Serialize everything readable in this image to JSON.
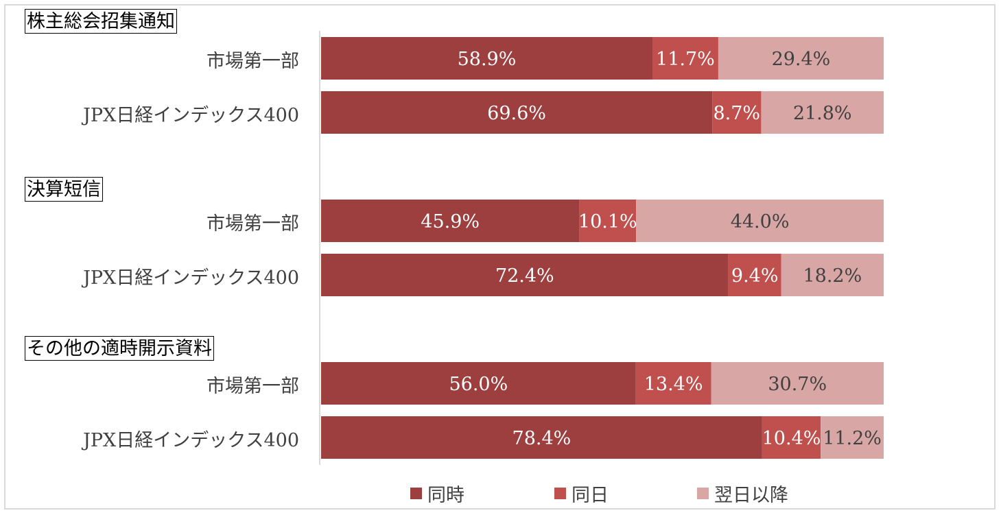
{
  "chart_data": {
    "type": "bar",
    "orientation": "horizontal",
    "stacked": true,
    "xlim": [
      0,
      100
    ],
    "colors": [
      "#9e3f3f",
      "#c0504d",
      "#d9a6a6"
    ],
    "series_names": [
      "同時",
      "同日",
      "翌日以降"
    ],
    "groups": [
      {
        "title": "株主総会招集通知",
        "rows": [
          {
            "label": "市場第一部",
            "values": [
              58.9,
              11.7,
              29.4
            ],
            "value_labels": [
              "58.9%",
              "11.7%",
              "29.4%"
            ]
          },
          {
            "label": "JPX日経インデックス400",
            "values": [
              69.6,
              8.7,
              21.8
            ],
            "value_labels": [
              "69.6%",
              "8.7%",
              "21.8%"
            ]
          }
        ]
      },
      {
        "title": "決算短信",
        "rows": [
          {
            "label": "市場第一部",
            "values": [
              45.9,
              10.1,
              44.0
            ],
            "value_labels": [
              "45.9%",
              "10.1%",
              "44.0%"
            ]
          },
          {
            "label": "JPX日経インデックス400",
            "values": [
              72.4,
              9.4,
              18.2
            ],
            "value_labels": [
              "72.4%",
              "9.4%",
              "18.2%"
            ]
          }
        ]
      },
      {
        "title": "その他の適時開示資料",
        "rows": [
          {
            "label": "市場第一部",
            "values": [
              56.0,
              13.4,
              30.7
            ],
            "value_labels": [
              "56.0%",
              "13.4%",
              "30.7%"
            ]
          },
          {
            "label": "JPX日経インデックス400",
            "values": [
              78.4,
              10.4,
              11.2
            ],
            "value_labels": [
              "78.4%",
              "10.4%",
              "11.2%"
            ]
          }
        ]
      }
    ],
    "legend_position": "bottom"
  }
}
